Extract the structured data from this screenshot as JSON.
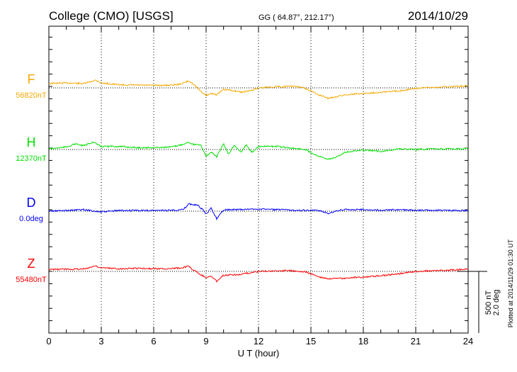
{
  "header": {
    "station": "College (CMO)  [USGS]",
    "coords": "GG ( 64.87°, 212.17°)",
    "date": "2014/10/29"
  },
  "footer": {
    "plotted": "Plotted at 2014/11/29 01:30 UT"
  },
  "scale": {
    "nt": "500 nT",
    "deg": "2.0 deg"
  },
  "colors": {
    "F": "#f5a800",
    "H": "#00e000",
    "D": "#0000ff",
    "Z": "#ff0000"
  },
  "chart_data": {
    "type": "line",
    "xlabel": "U T (hour)",
    "xlim": [
      0,
      24
    ],
    "xticks": [
      "0",
      "3",
      "6",
      "9",
      "12",
      "15",
      "18",
      "21",
      "24"
    ],
    "grid": "dotted vertical every 3 hours",
    "series": [
      {
        "name": "F",
        "baseline_label": "56820nT",
        "unit": "nT",
        "points": [
          [
            0,
            35
          ],
          [
            1,
            40
          ],
          [
            2,
            35
          ],
          [
            2.7,
            63
          ],
          [
            3,
            40
          ],
          [
            4,
            25
          ],
          [
            5,
            22
          ],
          [
            6,
            20
          ],
          [
            7,
            22
          ],
          [
            7.5,
            30
          ],
          [
            8,
            55
          ],
          [
            8.3,
            30
          ],
          [
            8.7,
            -30
          ],
          [
            9,
            -60
          ],
          [
            9.3,
            -45
          ],
          [
            9.6,
            -55
          ],
          [
            10,
            -15
          ],
          [
            10.5,
            -20
          ],
          [
            11,
            -35
          ],
          [
            11.5,
            -25
          ],
          [
            12,
            0
          ],
          [
            13,
            10
          ],
          [
            14,
            12
          ],
          [
            14.5,
            5
          ],
          [
            15,
            -25
          ],
          [
            15.5,
            -60
          ],
          [
            16,
            -85
          ],
          [
            16.5,
            -70
          ],
          [
            17,
            -55
          ],
          [
            18,
            -45
          ],
          [
            19,
            -35
          ],
          [
            20,
            -25
          ],
          [
            21,
            -5
          ],
          [
            22,
            5
          ],
          [
            23,
            10
          ],
          [
            24,
            15
          ]
        ]
      },
      {
        "name": "H",
        "baseline_label": "12370nT",
        "unit": "nT",
        "points": [
          [
            0,
            5
          ],
          [
            1,
            20
          ],
          [
            1.5,
            45
          ],
          [
            2,
            30
          ],
          [
            2.5,
            60
          ],
          [
            3,
            25
          ],
          [
            4,
            25
          ],
          [
            5,
            15
          ],
          [
            6,
            15
          ],
          [
            7,
            20
          ],
          [
            7.5,
            35
          ],
          [
            8,
            60
          ],
          [
            8.3,
            40
          ],
          [
            8.7,
            35
          ],
          [
            9,
            -55
          ],
          [
            9.3,
            -20
          ],
          [
            9.6,
            -60
          ],
          [
            10,
            45
          ],
          [
            10.3,
            -40
          ],
          [
            10.6,
            35
          ],
          [
            11,
            -20
          ],
          [
            11.3,
            40
          ],
          [
            11.6,
            -25
          ],
          [
            12,
            25
          ],
          [
            13,
            25
          ],
          [
            14,
            10
          ],
          [
            14.7,
            0
          ],
          [
            15,
            -25
          ],
          [
            15.5,
            -55
          ],
          [
            16,
            -80
          ],
          [
            16.5,
            -60
          ],
          [
            17,
            -20
          ],
          [
            18,
            -5
          ],
          [
            19,
            -15
          ],
          [
            20,
            5
          ],
          [
            21,
            0
          ],
          [
            22,
            5
          ],
          [
            23,
            5
          ],
          [
            24,
            5
          ]
        ]
      },
      {
        "name": "D",
        "baseline_label": "0.0deg",
        "unit": "deg",
        "points": [
          [
            0,
            0
          ],
          [
            1,
            0.02
          ],
          [
            2,
            0.05
          ],
          [
            3,
            -0.03
          ],
          [
            4,
            0.02
          ],
          [
            5,
            0.02
          ],
          [
            6,
            0.02
          ],
          [
            7,
            0.03
          ],
          [
            7.7,
            0.05
          ],
          [
            8,
            0.23
          ],
          [
            8.5,
            0.2
          ],
          [
            8.8,
            0.05
          ],
          [
            9,
            -0.1
          ],
          [
            9.3,
            0.1
          ],
          [
            9.6,
            -0.25
          ],
          [
            10,
            0.05
          ],
          [
            11,
            0.05
          ],
          [
            12,
            0.07
          ],
          [
            13,
            0.05
          ],
          [
            14,
            0.03
          ],
          [
            15,
            0.03
          ],
          [
            15.6,
            0
          ],
          [
            16,
            -0.08
          ],
          [
            16.5,
            0.02
          ],
          [
            17,
            0.05
          ],
          [
            18,
            0.05
          ],
          [
            19,
            0.03
          ],
          [
            20,
            0.05
          ],
          [
            21,
            0.03
          ],
          [
            22,
            0.03
          ],
          [
            23,
            0.02
          ],
          [
            24,
            0.02
          ]
        ]
      },
      {
        "name": "Z",
        "baseline_label": "55480nT",
        "unit": "nT",
        "points": [
          [
            0,
            15
          ],
          [
            1,
            18
          ],
          [
            2,
            20
          ],
          [
            2.7,
            45
          ],
          [
            3,
            28
          ],
          [
            4,
            22
          ],
          [
            5,
            25
          ],
          [
            6,
            22
          ],
          [
            7,
            22
          ],
          [
            7.5,
            28
          ],
          [
            8,
            40
          ],
          [
            8.5,
            -10
          ],
          [
            9,
            -50
          ],
          [
            9.3,
            -40
          ],
          [
            9.6,
            -80
          ],
          [
            10,
            -30
          ],
          [
            11,
            -25
          ],
          [
            12,
            0
          ],
          [
            13,
            5
          ],
          [
            14,
            5
          ],
          [
            14.7,
            -5
          ],
          [
            15,
            -20
          ],
          [
            15.5,
            -45
          ],
          [
            16,
            -60
          ],
          [
            17,
            -55
          ],
          [
            18,
            -45
          ],
          [
            19,
            -35
          ],
          [
            20,
            -20
          ],
          [
            21,
            0
          ],
          [
            22,
            5
          ],
          [
            23,
            10
          ],
          [
            24,
            18
          ]
        ]
      }
    ]
  }
}
